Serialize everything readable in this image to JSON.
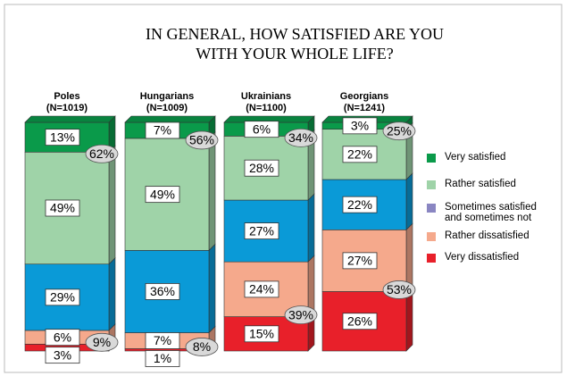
{
  "chart_data": {
    "type": "stacked_bar_3d",
    "title": [
      "IN GENERAL, HOW SATISFIED ARE YOU",
      "WITH YOUR WHOLE LIFE?"
    ],
    "categories": [
      "Poles",
      "Hungarians",
      "Ukrainians",
      "Georgians"
    ],
    "category_sublabels": [
      "(N=1019)",
      "(N=1009)",
      "(N=1100)",
      "(N=1241)"
    ],
    "ylim": [
      0,
      100
    ],
    "series": [
      {
        "name": "Very dissatisfied",
        "color": "#e8202a",
        "values": [
          3,
          1,
          15,
          26
        ],
        "value_labels": [
          "3%",
          "1%",
          "15%",
          "26%"
        ]
      },
      {
        "name": "Rather dissatisfied",
        "color": "#f5a98c",
        "values": [
          6,
          7,
          24,
          27
        ],
        "value_labels": [
          "6%",
          "7%",
          "24%",
          "27%"
        ]
      },
      {
        "name": "Sometimes satisfied and sometimes not",
        "color": "#0a9ad7",
        "legend_color": "#8a86c2",
        "values": [
          29,
          36,
          27,
          22
        ],
        "value_labels": [
          "29%",
          "36%",
          "27%",
          "22%"
        ]
      },
      {
        "name": "Rather satisfied",
        "color": "#9fd3a8",
        "values": [
          49,
          49,
          28,
          22
        ],
        "value_labels": [
          "49%",
          "49%",
          "28%",
          "22%"
        ]
      },
      {
        "name": "Very satisfied",
        "color": "#0a9a4a",
        "values": [
          13,
          7,
          6,
          3
        ],
        "value_labels": [
          "13%",
          "7%",
          "6%",
          "3%"
        ]
      }
    ],
    "totals": {
      "satisfied": {
        "values": [
          62,
          56,
          34,
          25
        ],
        "value_labels": [
          "62%",
          "56%",
          "34%",
          "25%"
        ]
      },
      "dissatisfied": {
        "values": [
          9,
          8,
          39,
          53
        ],
        "value_labels": [
          "9%",
          "8%",
          "39%",
          "53%"
        ]
      }
    }
  }
}
